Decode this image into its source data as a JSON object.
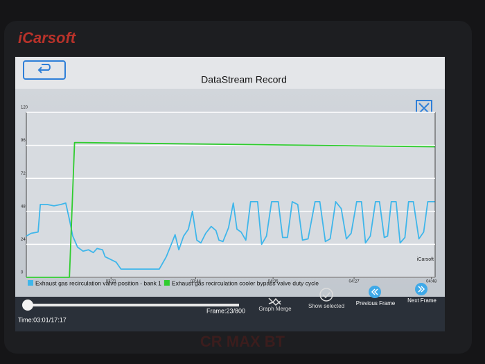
{
  "device": {
    "brand": "iCarsoft",
    "model": "CR MAX BT"
  },
  "header": {
    "title": "DataStream Record"
  },
  "chart_data": {
    "type": "line",
    "annotation": "iCarsoft",
    "xlim": [
      178,
      289
    ],
    "xticks": [
      {
        "value": 201,
        "label": "03:21"
      },
      {
        "value": 224,
        "label": "03:44"
      },
      {
        "value": 245,
        "label": "04:05"
      },
      {
        "value": 267,
        "label": "04:27"
      },
      {
        "value": 288,
        "label": "04:48"
      }
    ],
    "ylim": [
      0,
      120
    ],
    "yticks": [
      0,
      24,
      48,
      72,
      96,
      120
    ],
    "grid": true,
    "series": [
      {
        "name": "Exhaust gas recirculation valve position - bank 1",
        "color": "#3fb6ea",
        "x": [
          178.0,
          179.3,
          181.2,
          181.8,
          183.6,
          185.5,
          187.4,
          188.7,
          189.7,
          190.6,
          191.9,
          193.4,
          194.9,
          196.2,
          197.2,
          198.7,
          199.4,
          200.9,
          202.4,
          203.7,
          205.6,
          208.5,
          211.3,
          214.1,
          216.0,
          217.5,
          218.4,
          219.4,
          220.7,
          222.0,
          223.1,
          224.3,
          225.4,
          226.7,
          228.2,
          229.5,
          230.3,
          231.4,
          232.9,
          234.2,
          235.2,
          236.3,
          237.6,
          238.9,
          240.8,
          241.9,
          243.2,
          244.6,
          246.4,
          247.6,
          248.9,
          250.2,
          251.7,
          253.0,
          254.5,
          256.4,
          257.7,
          259.2,
          260.5,
          262.0,
          263.5,
          264.9,
          266.2,
          267.7,
          269.0,
          270.1,
          271.4,
          272.8,
          273.9,
          275.2,
          276.1,
          277.1,
          278.4,
          279.5,
          280.8,
          281.8,
          283.1,
          284.6,
          285.9,
          287.0,
          288.9
        ],
        "values": [
          30,
          32,
          33,
          53,
          53,
          52,
          53,
          54,
          42,
          30,
          22,
          19,
          20,
          18,
          21,
          20,
          15,
          13,
          11,
          6,
          6,
          6,
          6,
          6,
          15,
          25,
          31,
          20,
          30,
          35,
          48,
          27,
          25,
          32,
          37,
          34,
          27,
          26,
          36,
          54,
          35,
          33,
          27,
          55,
          55,
          24,
          30,
          55,
          55,
          29,
          29,
          55,
          53,
          27,
          28,
          55,
          55,
          26,
          28,
          55,
          50,
          28,
          32,
          55,
          55,
          25,
          30,
          55,
          55,
          29,
          30,
          55,
          55,
          25,
          29,
          55,
          55,
          28,
          33,
          55,
          55
        ]
      },
      {
        "name": "Exhaust gas recirculation cooler bypass valve duty cycle",
        "color": "#2fcc2f",
        "x": [
          178.0,
          189.7,
          191.1,
          288.9
        ],
        "values": [
          0,
          0,
          98,
          95
        ]
      }
    ]
  },
  "controls": {
    "time": "Time:03:01/17:17",
    "frame": "Frame:23/800",
    "buttons": [
      "Graph Merge",
      "Show selected",
      "Previous Frame",
      "Next Frame"
    ]
  }
}
